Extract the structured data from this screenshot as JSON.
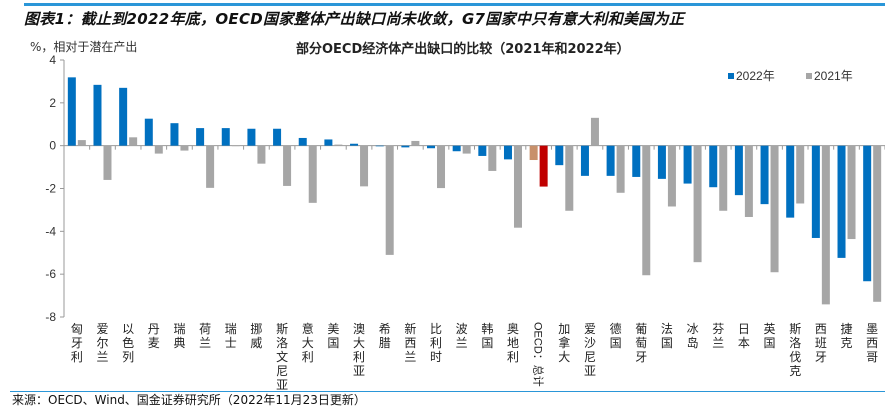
{
  "header": {
    "title": "图表1：截止到2022年底，OECD国家整体产出缺口尚未收敛，G7国家中只有意大利和美国为正"
  },
  "footer": {
    "source": "来源：OECD、Wind、国金证券研究所（2022年11月23日更新）"
  },
  "colors": {
    "s2022": "#0070c0",
    "s2021": "#a6a6a6",
    "oecd2022": "#c00000",
    "oecd2021": "#c8906a",
    "accent": "#2a96d8"
  },
  "chart_data": {
    "type": "bar",
    "title": "部分OECD经济体产出缺口的比较（2021年和2022年）",
    "ylabel": "%，相对于潜在产出",
    "xlabel": "",
    "ylim": [
      -8,
      4
    ],
    "yticks": [
      4,
      2,
      0,
      -2,
      -4,
      -6,
      -8
    ],
    "legend_position": "top-right",
    "categories": [
      "匈牙利",
      "爱尔兰",
      "以色列",
      "丹麦",
      "瑞典",
      "荷兰",
      "瑞士",
      "挪威",
      "斯洛文尼亚",
      "意大利",
      "美国",
      "澳大利亚",
      "希腊",
      "新西兰",
      "比利时",
      "波兰",
      "韩国",
      "奥地利",
      "OECD：总计",
      "加拿大",
      "爱沙尼亚",
      "德国",
      "葡萄牙",
      "法国",
      "冰岛",
      "芬兰",
      "日本",
      "英国",
      "斯洛伐克",
      "西班牙",
      "捷克",
      "墨西哥"
    ],
    "highlight_category": "OECD：总计",
    "series": [
      {
        "name": "2022年",
        "values": [
          3.19,
          2.84,
          2.7,
          1.26,
          1.05,
          0.82,
          0.82,
          0.79,
          0.79,
          0.36,
          0.29,
          0.09,
          -0.03,
          -0.08,
          -0.12,
          -0.26,
          -0.48,
          -0.64,
          -1.91,
          -0.91,
          -1.41,
          -1.41,
          -1.46,
          -1.55,
          -1.77,
          -1.94,
          -2.31,
          -2.73,
          -3.36,
          -4.31,
          -5.24,
          -6.33
        ]
      },
      {
        "name": "2021年",
        "values": [
          0.26,
          -1.6,
          0.39,
          -0.37,
          -0.23,
          -1.97,
          0,
          -0.84,
          -1.88,
          -2.67,
          0.05,
          -1.9,
          -5.1,
          0.22,
          -1.98,
          -0.37,
          -1.18,
          -3.83,
          -0.67,
          -3.04,
          1.3,
          -2.2,
          -6.05,
          -2.84,
          -5.44,
          -3.04,
          -3.33,
          -5.91,
          -2.7,
          -7.41,
          -4.36,
          -7.29
        ]
      }
    ]
  }
}
